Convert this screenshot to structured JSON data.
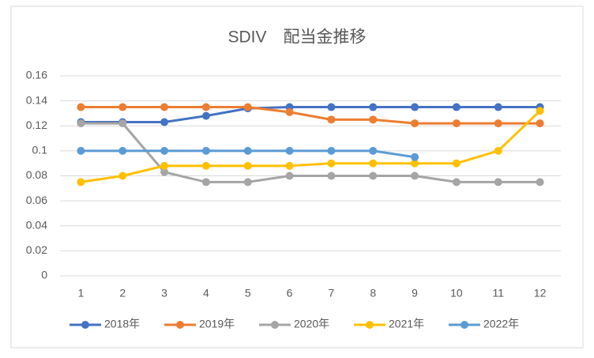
{
  "chart_data": {
    "type": "line",
    "title": "SDIV　配当金推移",
    "categories": [
      "1",
      "2",
      "3",
      "4",
      "5",
      "6",
      "7",
      "8",
      "9",
      "10",
      "11",
      "12"
    ],
    "series": [
      {
        "name": "2018年",
        "color": "#4472c4",
        "values": [
          0.123,
          0.123,
          0.123,
          0.128,
          0.134,
          0.135,
          0.135,
          0.135,
          0.135,
          0.135,
          0.135,
          0.135
        ]
      },
      {
        "name": "2019年",
        "color": "#ed7d31",
        "values": [
          0.135,
          0.135,
          0.135,
          0.135,
          0.135,
          0.131,
          0.125,
          0.125,
          0.122,
          0.122,
          0.122,
          0.122
        ]
      },
      {
        "name": "2020年",
        "color": "#a5a5a5",
        "values": [
          0.122,
          0.122,
          0.083,
          0.075,
          0.075,
          0.08,
          0.08,
          0.08,
          0.08,
          0.075,
          0.075,
          0.075
        ]
      },
      {
        "name": "2021年",
        "color": "#ffc000",
        "values": [
          0.075,
          0.08,
          0.088,
          0.088,
          0.088,
          0.088,
          0.09,
          0.09,
          0.09,
          0.09,
          0.1,
          0.132
        ]
      },
      {
        "name": "2022年",
        "color": "#5b9bd5",
        "values": [
          0.1,
          0.1,
          0.1,
          0.1,
          0.1,
          0.1,
          0.1,
          0.1,
          0.095,
          null,
          null,
          null
        ]
      }
    ],
    "ylim": [
      0,
      0.16
    ],
    "yticks": [
      0,
      0.02,
      0.04,
      0.06,
      0.08,
      0.1,
      0.12,
      0.14,
      0.16
    ],
    "grid": true,
    "legend": "bottom"
  }
}
